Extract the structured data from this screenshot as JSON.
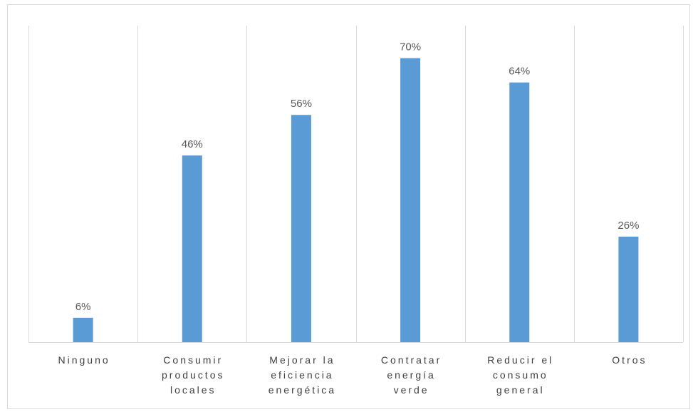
{
  "chart_data": {
    "type": "bar",
    "categories": [
      [
        "Ninguno"
      ],
      [
        "Consumir",
        "productos",
        "locales"
      ],
      [
        "Mejorar la",
        "eficiencia",
        "energética"
      ],
      [
        "Contratar",
        "energía",
        "verde"
      ],
      [
        "Reducir el",
        "consumo",
        "general"
      ],
      [
        "Otros"
      ]
    ],
    "values": [
      6,
      46,
      56,
      70,
      64,
      26
    ],
    "value_labels": [
      "6%",
      "46%",
      "56%",
      "70%",
      "64%",
      "26%"
    ],
    "ylim": [
      0,
      78
    ],
    "grid": "vertical category separators",
    "bar_color": "#5b9bd5",
    "gridline_color": "#d9d9d9"
  }
}
